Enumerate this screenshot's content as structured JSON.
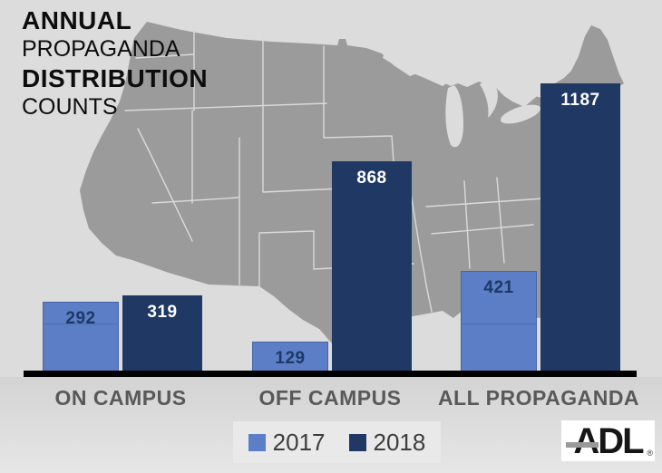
{
  "title": {
    "line1": "ANNUAL",
    "line2": "PROPAGANDA",
    "line3": "DISTRIBUTION",
    "line4": "COUNTS"
  },
  "chart_data": {
    "type": "bar",
    "title": "ANNUAL PROPAGANDA DISTRIBUTION COUNTS",
    "categories": [
      "ON CAMPUS",
      "OFF CAMPUS",
      "ALL PROPAGANDA"
    ],
    "series": [
      {
        "name": "2017",
        "color": "#5b7ec6",
        "label_color": "#1f3864",
        "values": [
          292,
          129,
          421
        ]
      },
      {
        "name": "2018",
        "color": "#1f3864",
        "label_color": "#ffffff",
        "values": [
          319,
          868,
          1187
        ]
      }
    ],
    "ylim": [
      0,
      1240
    ],
    "grid": false,
    "legend_position": "bottom-center",
    "value_labels": "inside-top",
    "background_motif": "US contiguous states map silhouette"
  },
  "logo": {
    "text": "ADL",
    "registered": "®"
  },
  "colors": {
    "background": "#dcdcdc",
    "map": "#9b9b9b",
    "map_state_borders": "#dadada",
    "axis": "#000000",
    "category_label": "#595959",
    "legend_box": "#e9e9e9",
    "series_2017": "#5b7ec6",
    "series_2018": "#1f3864",
    "title_text": "#0d0d0d"
  }
}
